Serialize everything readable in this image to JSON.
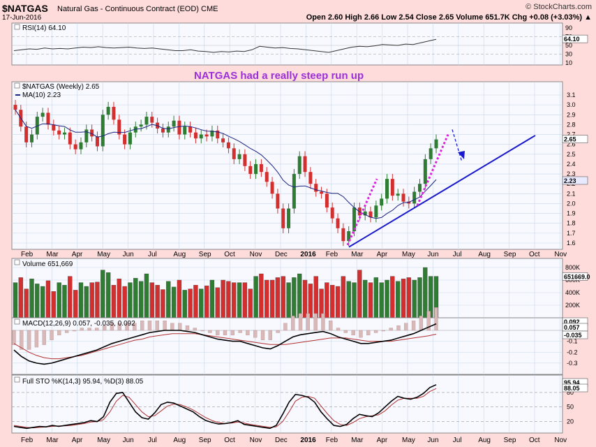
{
  "header": {
    "symbol": "$NATGAS",
    "subtitle": "Natural Gas - Continuous Contract (EOD) CME",
    "date": "17-Jun-2016",
    "brand": "© StockCharts.com",
    "ohlc": "Open 2.60  High 2.66  Low 2.54  Close 2.65  Volume 651.7K  Chg +0.08 (+3.03%) ▲"
  },
  "annotation": "NATGAS had a really steep run up",
  "colors": {
    "up": "#2e7d32",
    "down": "#d32f2f",
    "ma": "#1a237e",
    "trendline": "#1a1acc",
    "steep": "#dd22dd",
    "annotation": "#9b30d9",
    "panel_bg": "#f8f8ff"
  },
  "chart_data": [
    {
      "type": "line",
      "panel": "rsi",
      "title": "RSI(14) 64.10",
      "y_ticks": [
        90,
        70,
        50,
        30,
        10
      ],
      "current_label": "64.10",
      "values": [
        38,
        40,
        42,
        41,
        44,
        42,
        43,
        42,
        44,
        46,
        45,
        47,
        45,
        44,
        45,
        46,
        44,
        43,
        44,
        42,
        40,
        38,
        38,
        40,
        37,
        36,
        34,
        36,
        35,
        37,
        36,
        40,
        48,
        46,
        44,
        45,
        43,
        42,
        40,
        38,
        36,
        34,
        38,
        42,
        46,
        48,
        47,
        49,
        52,
        51,
        50,
        53,
        52,
        56,
        60,
        64
      ]
    },
    {
      "type": "candlestick",
      "panel": "price",
      "title": "$NATGAS (Weekly) 2.65",
      "ma_label": "MA(10) 2.23",
      "y_ticks": [
        3.1,
        3.0,
        2.9,
        2.8,
        2.7,
        2.6,
        2.5,
        2.4,
        2.3,
        2.2,
        2.1,
        2.0,
        1.9,
        1.8,
        1.7,
        1.6
      ],
      "x_ticks": [
        "Feb",
        "Mar",
        "Apr",
        "May",
        "Jun",
        "Jul",
        "Aug",
        "Sep",
        "Oct",
        "Nov",
        "Dec",
        "2016",
        "Feb",
        "Mar",
        "Apr",
        "May",
        "Jun",
        "Jul",
        "Aug",
        "Sep",
        "Oct",
        "Nov"
      ],
      "last_price_label": "2.65",
      "ma_value_label": "2.23",
      "closes": [
        2.95,
        2.78,
        2.62,
        2.7,
        2.88,
        2.92,
        2.8,
        2.74,
        2.7,
        2.72,
        2.6,
        2.55,
        2.62,
        2.75,
        2.68,
        2.58,
        2.9,
        2.98,
        2.85,
        2.7,
        2.6,
        2.72,
        2.78,
        2.8,
        2.88,
        2.82,
        2.76,
        2.72,
        2.78,
        2.84,
        2.7,
        2.78,
        2.72,
        2.66,
        2.7,
        2.68,
        2.74,
        2.66,
        2.62,
        2.56,
        2.45,
        2.5,
        2.38,
        2.3,
        2.4,
        2.32,
        2.22,
        2.1,
        1.95,
        1.75,
        1.95,
        2.3,
        2.48,
        2.32,
        2.2,
        2.12,
        2.1,
        1.96,
        1.85,
        1.75,
        1.62,
        1.72,
        1.96,
        1.88,
        1.92,
        1.86,
        1.98,
        2.05,
        2.25,
        2.08,
        2.1,
        2.02,
        2.0,
        2.12,
        2.2,
        2.45,
        2.56,
        2.65
      ]
    },
    {
      "type": "bar",
      "panel": "volume",
      "title": "Volume 651,669",
      "y_ticks": [
        "800K",
        "600K",
        "400K",
        "200K"
      ],
      "current_label": "651669.0",
      "values": [
        560,
        640,
        460,
        620,
        540,
        500,
        590,
        420,
        560,
        520,
        660,
        440,
        560,
        500,
        560,
        570,
        760,
        720,
        520,
        620,
        500,
        560,
        630,
        580,
        700,
        560,
        520,
        450,
        580,
        490,
        600,
        440,
        460,
        520,
        460,
        510,
        600,
        480,
        600,
        580,
        560,
        560,
        560,
        460,
        660,
        700,
        600,
        600,
        640,
        660,
        560,
        640,
        700,
        600,
        540,
        660,
        460,
        560,
        520,
        500,
        660,
        580,
        560,
        760,
        600,
        560,
        640,
        560,
        600,
        660,
        580,
        620,
        640,
        600,
        640,
        800,
        660,
        660
      ],
      "up": [
        true,
        false,
        false,
        true,
        true,
        true,
        false,
        false,
        true,
        true,
        false,
        false,
        true,
        true,
        false,
        false,
        true,
        true,
        false,
        false,
        false,
        true,
        true,
        true,
        true,
        false,
        false,
        false,
        true,
        true,
        false,
        true,
        false,
        false,
        true,
        false,
        true,
        false,
        false,
        false,
        false,
        true,
        false,
        false,
        true,
        false,
        false,
        false,
        false,
        false,
        true,
        true,
        true,
        false,
        false,
        false,
        false,
        false,
        false,
        false,
        false,
        true,
        true,
        false,
        true,
        false,
        true,
        true,
        true,
        false,
        true,
        false,
        false,
        true,
        true,
        true,
        true,
        true
      ]
    },
    {
      "type": "line",
      "panel": "macd",
      "title": "MACD(12,26,9) 0.057, -0.035, 0.092",
      "y_ticks": [
        -0.1,
        -0.2,
        -0.3
      ],
      "current_labels": [
        "0.092",
        "0.057",
        "-0.035"
      ],
      "macd": [
        -0.18,
        -0.24,
        -0.28,
        -0.3,
        -0.31,
        -0.3,
        -0.28,
        -0.26,
        -0.24,
        -0.22,
        -0.2,
        -0.18,
        -0.15,
        -0.12,
        -0.1,
        -0.08,
        -0.06,
        -0.04,
        -0.02,
        -0.01,
        0.0,
        0.0,
        0.0,
        -0.01,
        -0.02,
        -0.04,
        -0.06,
        -0.08,
        -0.09,
        -0.1,
        -0.1,
        -0.12,
        -0.14,
        -0.16,
        -0.17,
        -0.14,
        -0.1,
        -0.06,
        -0.04,
        -0.03,
        -0.02,
        -0.01,
        -0.03,
        -0.06,
        -0.08,
        -0.1,
        -0.12,
        -0.12,
        -0.11,
        -0.1,
        -0.09,
        -0.07,
        -0.05,
        -0.03,
        0.0,
        0.03,
        0.06
      ],
      "signal": [
        -0.12,
        -0.16,
        -0.2,
        -0.23,
        -0.25,
        -0.26,
        -0.26,
        -0.25,
        -0.24,
        -0.23,
        -0.21,
        -0.19,
        -0.17,
        -0.15,
        -0.13,
        -0.11,
        -0.09,
        -0.08,
        -0.06,
        -0.05,
        -0.04,
        -0.03,
        -0.03,
        -0.03,
        -0.03,
        -0.04,
        -0.05,
        -0.06,
        -0.07,
        -0.08,
        -0.09,
        -0.1,
        -0.11,
        -0.12,
        -0.13,
        -0.13,
        -0.13,
        -0.12,
        -0.11,
        -0.1,
        -0.09,
        -0.08,
        -0.07,
        -0.07,
        -0.07,
        -0.08,
        -0.09,
        -0.1,
        -0.1,
        -0.1,
        -0.1,
        -0.09,
        -0.08,
        -0.07,
        -0.06,
        -0.05,
        -0.035
      ]
    },
    {
      "type": "line",
      "panel": "stochastic",
      "title": "Full STO %K(14,3) 95.94, %D(3) 88.05",
      "y_ticks": [
        80,
        50,
        20
      ],
      "current_labels": [
        "95.94",
        "88.05"
      ],
      "k": [
        10,
        8,
        6,
        8,
        10,
        9,
        12,
        10,
        12,
        14,
        16,
        18,
        22,
        20,
        30,
        60,
        78,
        80,
        60,
        40,
        28,
        25,
        38,
        55,
        60,
        58,
        52,
        46,
        40,
        30,
        22,
        18,
        15,
        16,
        18,
        22,
        14,
        12,
        10,
        8,
        6,
        12,
        35,
        60,
        76,
        74,
        70,
        60,
        40,
        25,
        12,
        10,
        14,
        26,
        35,
        32,
        30,
        38,
        50,
        62,
        72,
        68,
        66,
        70,
        78,
        90,
        96
      ],
      "d": [
        12,
        10,
        8,
        7,
        8,
        9,
        10,
        11,
        11,
        12,
        14,
        16,
        19,
        20,
        24,
        40,
        62,
        74,
        70,
        55,
        40,
        30,
        32,
        42,
        52,
        56,
        55,
        50,
        44,
        36,
        28,
        22,
        18,
        16,
        17,
        19,
        17,
        14,
        12,
        10,
        8,
        9,
        20,
        40,
        62,
        70,
        72,
        68,
        52,
        36,
        22,
        14,
        12,
        18,
        26,
        30,
        32,
        34,
        42,
        54,
        64,
        68,
        68,
        68,
        72,
        82,
        88
      ]
    }
  ]
}
